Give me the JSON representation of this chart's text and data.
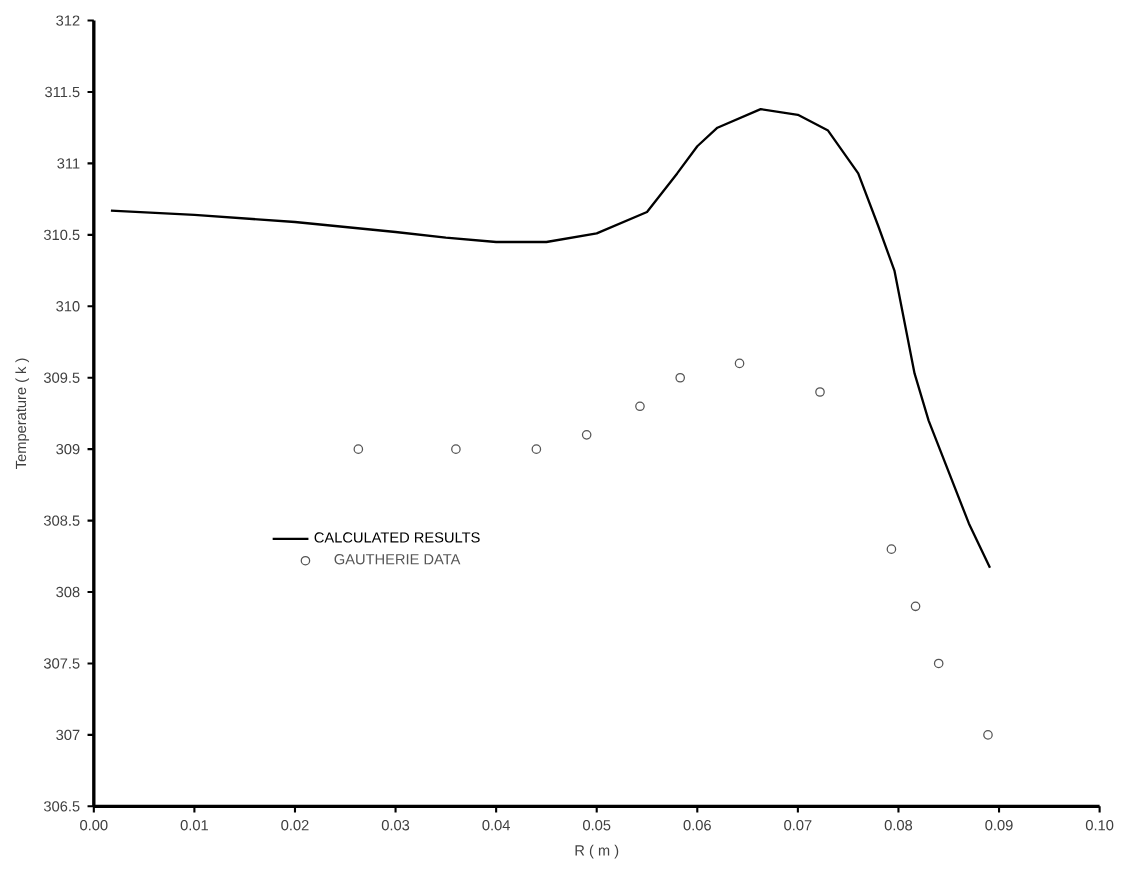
{
  "chart_data": {
    "type": "line",
    "xlabel": "R ( m )",
    "ylabel": "Temperature ( k )",
    "xlim": [
      0,
      0.1
    ],
    "ylim": [
      306.5,
      312
    ],
    "xticks": [
      {
        "value": 0,
        "label": "0.00"
      },
      {
        "value": 0.01,
        "label": "0.01"
      },
      {
        "value": 0.02,
        "label": "0.02"
      },
      {
        "value": 0.03,
        "label": "0.03"
      },
      {
        "value": 0.04,
        "label": "0.04"
      },
      {
        "value": 0.05,
        "label": "0.05"
      },
      {
        "value": 0.06,
        "label": "0.06"
      },
      {
        "value": 0.07,
        "label": "0.07"
      },
      {
        "value": 0.08,
        "label": "0.08"
      },
      {
        "value": 0.09,
        "label": "0.09"
      },
      {
        "value": 0.1,
        "label": "0.10"
      }
    ],
    "yticks": [
      306.5,
      307,
      307.5,
      308,
      308.5,
      309,
      309.5,
      310,
      310.5,
      311,
      311.5,
      312
    ],
    "legend": "left",
    "grid": false,
    "series": [
      {
        "name": "CALCULATED RESULTS",
        "color": "#000000",
        "marker": "none",
        "line_style": "solid",
        "x": [
          0.0017,
          0.01,
          0.02,
          0.03,
          0.035,
          0.04,
          0.045,
          0.05,
          0.055,
          0.058,
          0.06,
          0.062,
          0.0663,
          0.07,
          0.073,
          0.076,
          0.078,
          0.0796,
          0.0816,
          0.083,
          0.085,
          0.087,
          0.0891
        ],
        "values": [
          310.67,
          310.64,
          310.59,
          310.52,
          310.48,
          310.45,
          310.45,
          310.51,
          310.66,
          310.93,
          311.12,
          311.25,
          311.38,
          311.34,
          311.23,
          310.93,
          310.56,
          310.25,
          309.53,
          309.2,
          308.84,
          308.48,
          308.17
        ]
      },
      {
        "name": "GAUTHERIE DATA",
        "type": "scatter",
        "color": "#555555",
        "marker": "circle",
        "x": [
          0.0263,
          0.036,
          0.044,
          0.049,
          0.0543,
          0.0583,
          0.0642,
          0.0722,
          0.0793,
          0.0817,
          0.084,
          0.0889
        ],
        "values": [
          309,
          309,
          309,
          309.1,
          309.3,
          309.5,
          309.6,
          309.4,
          308.3,
          307.9,
          307.5,
          307
        ]
      }
    ]
  }
}
